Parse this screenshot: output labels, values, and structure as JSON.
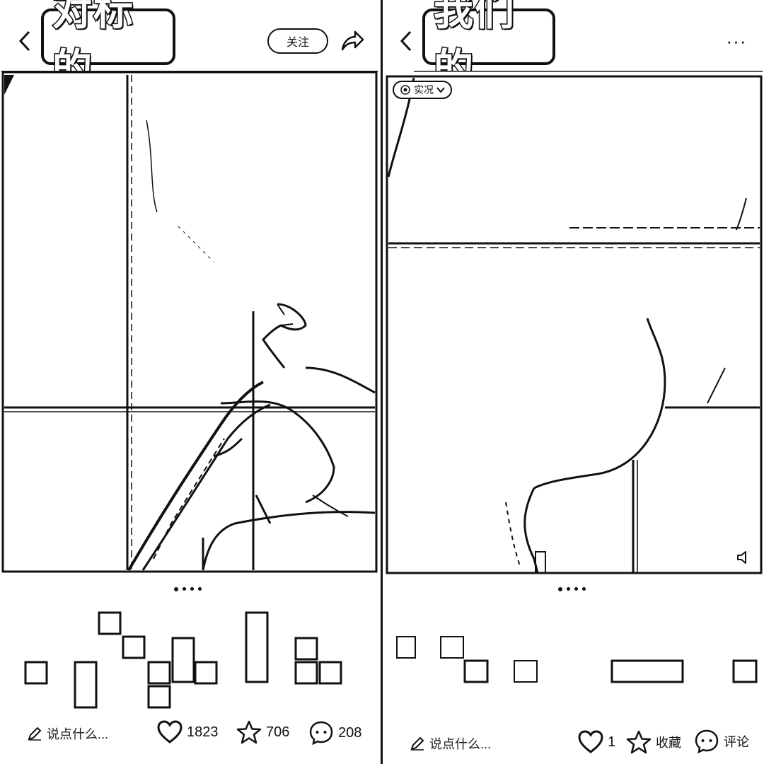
{
  "left_panel": {
    "title": "对标的",
    "follow_label": "关注",
    "comment_placeholder": "说点什么...",
    "like_count": "1823",
    "collect_count": "706",
    "comment_count": "208"
  },
  "right_panel": {
    "title": "我们的",
    "live_label": "实况",
    "more_label": "···",
    "comment_placeholder": "说点什么...",
    "like_count": "1",
    "collect_label": "收藏",
    "comment_label": "评论"
  },
  "carousel": {
    "pages": 4,
    "active_index": 0
  },
  "colors": {
    "ink": "#111111",
    "background": "#ffffff"
  },
  "icons": [
    "back-arrow-icon",
    "share-icon",
    "more-icon",
    "live-photo-icon",
    "sound-icon",
    "edit-pencil-icon",
    "heart-icon",
    "star-icon",
    "comment-bubble-icon"
  ]
}
